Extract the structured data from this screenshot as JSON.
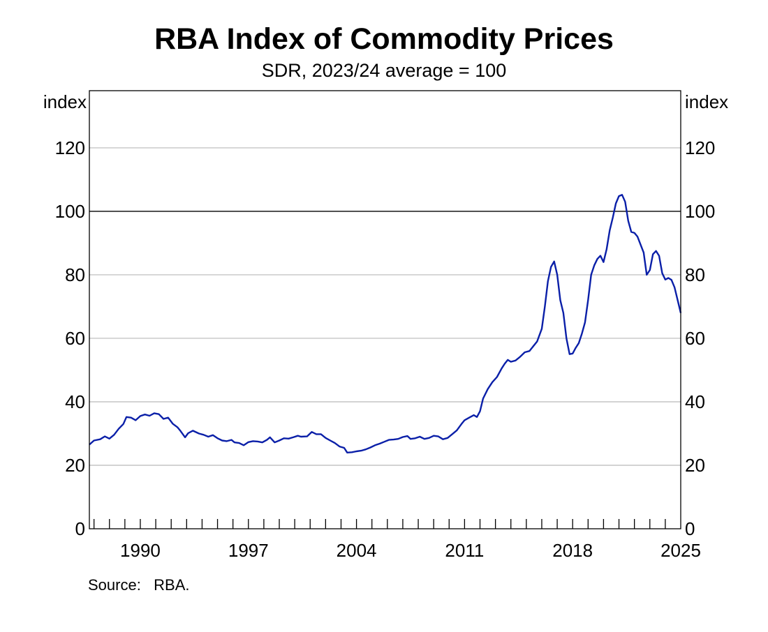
{
  "chart_data": {
    "type": "line",
    "title": "RBA Index of Commodity Prices",
    "subtitle": "SDR, 2023/24 average = 100",
    "ylabel_left": "index",
    "ylabel_right": "index",
    "xlim": [
      1986.7,
      2025.0
    ],
    "ylim": [
      0,
      138
    ],
    "y_ticks": [
      0,
      20,
      40,
      60,
      80,
      100,
      120
    ],
    "x_tick_labels": [
      {
        "label": "1990",
        "x": 1990
      },
      {
        "label": "1997",
        "x": 1997
      },
      {
        "label": "2004",
        "x": 2004
      },
      {
        "label": "2011",
        "x": 2011
      },
      {
        "label": "2018",
        "x": 2018
      },
      {
        "label": "2025",
        "x": 2025
      }
    ],
    "x_minor_ticks": [
      1987,
      1988,
      1989,
      1990,
      1991,
      1992,
      1993,
      1994,
      1995,
      1996,
      1997,
      1998,
      1999,
      2000,
      2001,
      2002,
      2003,
      2004,
      2005,
      2006,
      2007,
      2008,
      2009,
      2010,
      2011,
      2012,
      2013,
      2014,
      2015,
      2016,
      2017,
      2018,
      2019,
      2020,
      2021,
      2022,
      2023,
      2024
    ],
    "reference_line": 100,
    "grid": true,
    "series": [
      {
        "color": "#0a1fa8",
        "points": [
          [
            1986.7,
            26.5
          ],
          [
            1987.0,
            27.8
          ],
          [
            1987.4,
            28.2
          ],
          [
            1987.7,
            29.1
          ],
          [
            1988.0,
            28.4
          ],
          [
            1988.3,
            29.6
          ],
          [
            1988.6,
            31.5
          ],
          [
            1988.9,
            33.0
          ],
          [
            1989.1,
            35.2
          ],
          [
            1989.4,
            35.0
          ],
          [
            1989.7,
            34.2
          ],
          [
            1990.0,
            35.5
          ],
          [
            1990.3,
            36.0
          ],
          [
            1990.6,
            35.6
          ],
          [
            1990.9,
            36.4
          ],
          [
            1991.2,
            36.1
          ],
          [
            1991.5,
            34.6
          ],
          [
            1991.8,
            35.0
          ],
          [
            1992.1,
            33.1
          ],
          [
            1992.4,
            32.0
          ],
          [
            1992.6,
            30.8
          ],
          [
            1992.9,
            28.8
          ],
          [
            1993.1,
            30.1
          ],
          [
            1993.4,
            30.9
          ],
          [
            1993.8,
            30.0
          ],
          [
            1994.1,
            29.6
          ],
          [
            1994.4,
            29.0
          ],
          [
            1994.7,
            29.5
          ],
          [
            1995.0,
            28.5
          ],
          [
            1995.3,
            27.8
          ],
          [
            1995.6,
            27.6
          ],
          [
            1995.9,
            28.0
          ],
          [
            1996.1,
            27.2
          ],
          [
            1996.4,
            27.0
          ],
          [
            1996.7,
            26.3
          ],
          [
            1997.0,
            27.3
          ],
          [
            1997.3,
            27.6
          ],
          [
            1997.6,
            27.5
          ],
          [
            1997.9,
            27.2
          ],
          [
            1998.2,
            28.0
          ],
          [
            1998.4,
            28.8
          ],
          [
            1998.7,
            27.2
          ],
          [
            1999.0,
            27.8
          ],
          [
            1999.3,
            28.5
          ],
          [
            1999.6,
            28.4
          ],
          [
            1999.9,
            28.8
          ],
          [
            2000.2,
            29.3
          ],
          [
            2000.4,
            29.0
          ],
          [
            2000.8,
            29.1
          ],
          [
            2001.1,
            30.5
          ],
          [
            2001.4,
            29.8
          ],
          [
            2001.7,
            29.8
          ],
          [
            2002.0,
            28.6
          ],
          [
            2002.3,
            27.8
          ],
          [
            2002.6,
            27.0
          ],
          [
            2002.9,
            25.9
          ],
          [
            2003.2,
            25.5
          ],
          [
            2003.4,
            24.0
          ],
          [
            2003.7,
            24.1
          ],
          [
            2004.0,
            24.4
          ],
          [
            2004.3,
            24.6
          ],
          [
            2004.6,
            25.0
          ],
          [
            2004.9,
            25.6
          ],
          [
            2005.2,
            26.3
          ],
          [
            2005.5,
            26.8
          ],
          [
            2005.8,
            27.4
          ],
          [
            2006.1,
            28.0
          ],
          [
            2006.4,
            28.1
          ],
          [
            2006.7,
            28.3
          ],
          [
            2007.0,
            28.9
          ],
          [
            2007.3,
            29.2
          ],
          [
            2007.5,
            28.3
          ],
          [
            2007.8,
            28.5
          ],
          [
            2008.1,
            29.0
          ],
          [
            2008.4,
            28.3
          ],
          [
            2008.7,
            28.6
          ],
          [
            2009.0,
            29.3
          ],
          [
            2009.3,
            29.1
          ],
          [
            2009.6,
            28.2
          ],
          [
            2009.9,
            28.6
          ],
          [
            2010.2,
            29.8
          ],
          [
            2010.5,
            31.0
          ],
          [
            2010.8,
            33.0
          ],
          [
            2011.0,
            34.2
          ],
          [
            2011.3,
            35.0
          ],
          [
            2011.6,
            35.8
          ],
          [
            2011.8,
            35.2
          ],
          [
            2012.0,
            37.0
          ],
          [
            2012.2,
            41.0
          ],
          [
            2012.5,
            44.0
          ],
          [
            2012.8,
            46.2
          ],
          [
            2013.1,
            47.8
          ],
          [
            2013.4,
            50.5
          ],
          [
            2013.6,
            52.0
          ],
          [
            2013.8,
            53.2
          ],
          [
            2014.0,
            52.6
          ],
          [
            2014.3,
            53.0
          ],
          [
            2014.6,
            54.2
          ],
          [
            2014.9,
            55.6
          ],
          [
            2015.2,
            56.0
          ],
          [
            2015.4,
            57.2
          ],
          [
            2015.7,
            59.0
          ],
          [
            2016.0,
            63.0
          ],
          [
            2016.2,
            70.0
          ],
          [
            2016.4,
            78.0
          ],
          [
            2016.6,
            82.5
          ],
          [
            2016.8,
            84.2
          ],
          [
            2017.0,
            80.0
          ],
          [
            2017.2,
            72.0
          ],
          [
            2017.4,
            68.0
          ],
          [
            2017.6,
            60.0
          ],
          [
            2017.8,
            55.0
          ],
          [
            2018.0,
            55.2
          ],
          [
            2018.2,
            57.0
          ],
          [
            2018.4,
            58.5
          ],
          [
            2018.6,
            61.5
          ],
          [
            2018.8,
            65.0
          ],
          [
            2019.0,
            72.0
          ],
          [
            2019.2,
            80.0
          ],
          [
            2019.4,
            83.0
          ],
          [
            2019.6,
            85.0
          ],
          [
            2019.8,
            86.0
          ],
          [
            2020.0,
            84.0
          ],
          [
            2020.2,
            88.0
          ],
          [
            2020.4,
            94.0
          ],
          [
            2020.6,
            98.0
          ],
          [
            2020.8,
            102.5
          ],
          [
            2021.0,
            104.8
          ],
          [
            2021.2,
            105.2
          ],
          [
            2021.4,
            103.0
          ],
          [
            2021.6,
            97.0
          ],
          [
            2021.8,
            93.5
          ],
          [
            2022.0,
            93.2
          ],
          [
            2022.2,
            92.0
          ],
          [
            2022.4,
            89.5
          ],
          [
            2022.6,
            87.0
          ],
          [
            2022.8,
            80.0
          ],
          [
            2023.0,
            81.5
          ],
          [
            2023.2,
            86.5
          ],
          [
            2023.4,
            87.5
          ],
          [
            2023.6,
            86.0
          ],
          [
            2023.8,
            80.5
          ],
          [
            2024.0,
            78.5
          ],
          [
            2024.2,
            79.0
          ],
          [
            2024.4,
            78.4
          ],
          [
            2024.6,
            76.0
          ],
          [
            2024.8,
            72.0
          ],
          [
            2025.0,
            68.0
          ]
        ]
      }
    ]
  },
  "source_note": "Source:   RBA."
}
